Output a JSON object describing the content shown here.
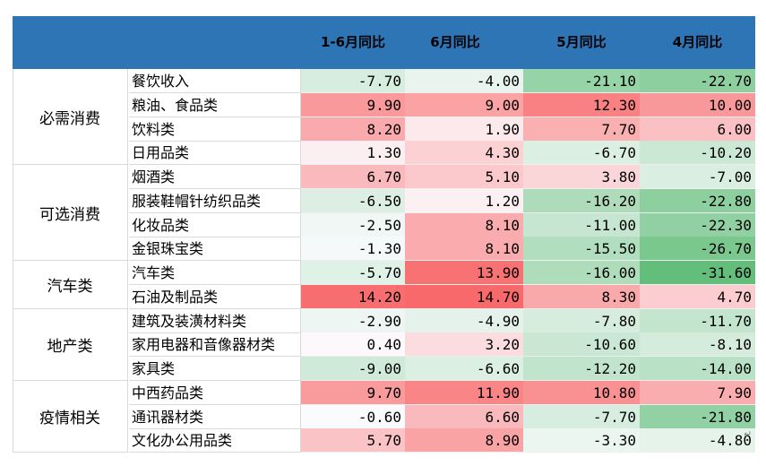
{
  "columns": [
    "1-6月同比",
    "6月同比",
    "5月同比",
    "4月同比"
  ],
  "groups": [
    {
      "name": "必需消费",
      "rows": [
        {
          "label": "餐饮收入",
          "values": [
            "-7.70",
            "-4.00",
            "-21.10",
            "-22.70"
          ]
        },
        {
          "label": "粮油、食品类",
          "values": [
            "9.90",
            "9.00",
            "12.30",
            "10.00"
          ]
        },
        {
          "label": "饮料类",
          "values": [
            "8.20",
            "1.90",
            "7.70",
            "6.00"
          ]
        },
        {
          "label": "日用品类",
          "values": [
            "1.30",
            "4.30",
            "-6.70",
            "-10.20"
          ]
        }
      ]
    },
    {
      "name": "可选消费",
      "rows": [
        {
          "label": "烟酒类",
          "values": [
            "6.70",
            "5.10",
            "3.80",
            "-7.00"
          ]
        },
        {
          "label": "服装鞋帽针纺织品类",
          "values": [
            "-6.50",
            "1.20",
            "-16.20",
            "-22.80"
          ]
        },
        {
          "label": "化妆品类",
          "values": [
            "-2.50",
            "8.10",
            "-11.00",
            "-22.30"
          ]
        },
        {
          "label": "金银珠宝类",
          "values": [
            "-1.30",
            "8.10",
            "-15.50",
            "-26.70"
          ]
        }
      ]
    },
    {
      "name": "汽车类",
      "rows": [
        {
          "label": "汽车类",
          "values": [
            "-5.70",
            "13.90",
            "-16.00",
            "-31.60"
          ]
        },
        {
          "label": "石油及制品类",
          "values": [
            "14.20",
            "14.70",
            "8.30",
            "4.70"
          ]
        }
      ]
    },
    {
      "name": "地产类",
      "rows": [
        {
          "label": "建筑及装潢材料类",
          "values": [
            "-2.90",
            "-4.90",
            "-7.80",
            "-11.70"
          ]
        },
        {
          "label": "家用电器和音像器材类",
          "values": [
            "0.40",
            "3.20",
            "-10.60",
            "-8.10"
          ]
        },
        {
          "label": "家具类",
          "values": [
            "-9.00",
            "-6.60",
            "-12.20",
            "-14.00"
          ]
        }
      ]
    },
    {
      "name": "疫情相关",
      "rows": [
        {
          "label": "中西药品类",
          "values": [
            "9.70",
            "11.90",
            "10.80",
            "7.90"
          ]
        },
        {
          "label": "通讯器材类",
          "values": [
            "-0.60",
            "6.60",
            "-7.70",
            "-21.80"
          ]
        },
        {
          "label": "文化办公用品类",
          "values": [
            "5.70",
            "8.90",
            "-3.30",
            "-4.80"
          ]
        }
      ]
    }
  ],
  "colors": {
    "header": "#2e75b6",
    "positive": "#f8696b",
    "negative": "#63be7b",
    "neutral": "#fcfcff"
  }
}
